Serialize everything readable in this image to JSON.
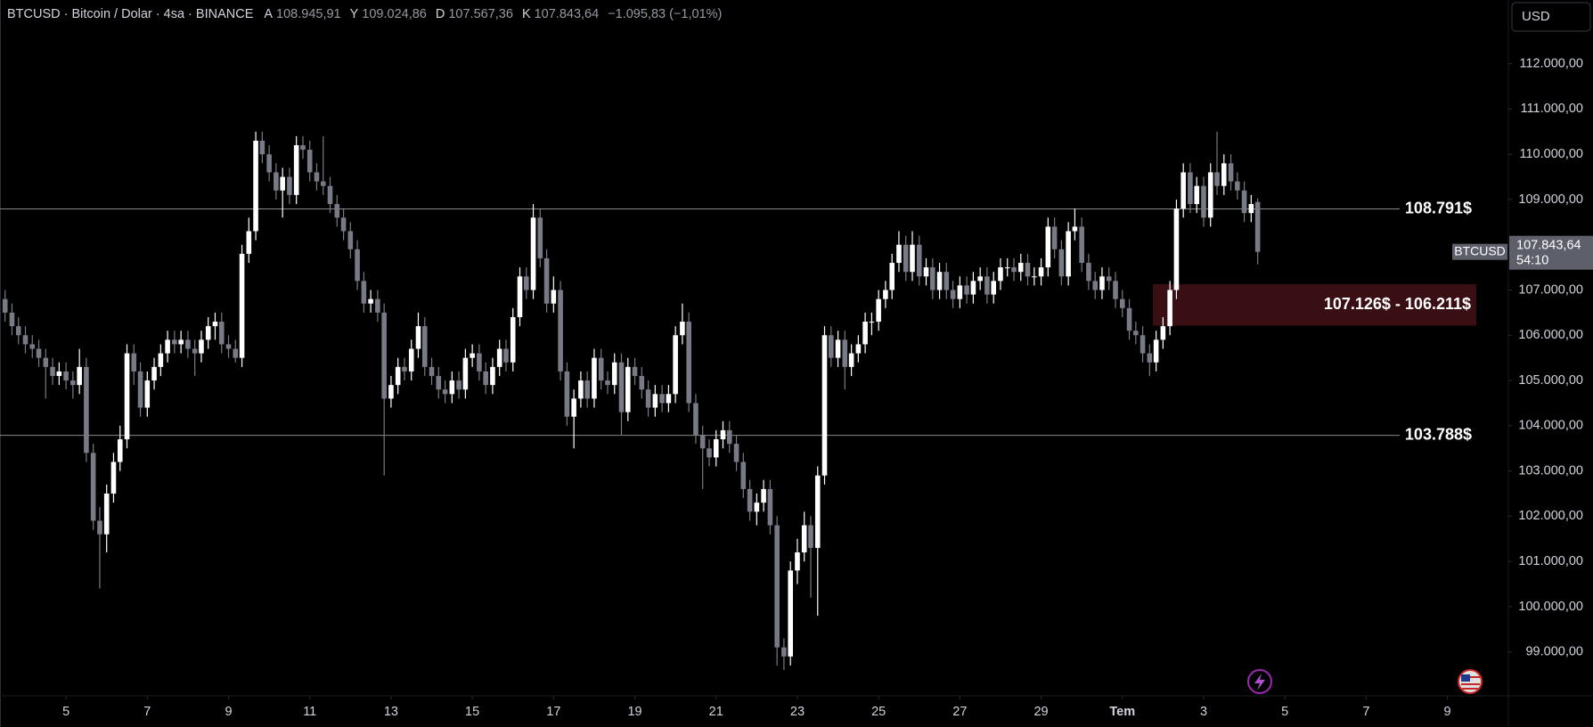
{
  "header": {
    "symbol": "BTCUSD · Bitcoin / Dolar · 4sa · BINANCE",
    "open_label": "A",
    "open": "108.945,91",
    "high_label": "Y",
    "high": "109.024,86",
    "low_label": "D",
    "low": "107.567,36",
    "close_label": "K",
    "close": "107.843,64",
    "change": "−1.095,83 (−1,01%)"
  },
  "currency_button": "USD",
  "price_label": {
    "symbol": "BTCUSD",
    "price": "107.843,64",
    "countdown": "54:10"
  },
  "chart_data": {
    "type": "candlestick",
    "up_color": "#ffffff",
    "down_color": "#787b86",
    "grid": false,
    "xlim": [
      3.375,
      40.5
    ],
    "ylim": [
      98030,
      113410
    ],
    "xticks": [
      5,
      7,
      9,
      11,
      13,
      15,
      17,
      19,
      21,
      23,
      25,
      27,
      29,
      {
        "value": 31,
        "label": "Tem"
      },
      {
        "value": 33,
        "label": "3"
      },
      {
        "value": 35,
        "label": "5"
      },
      {
        "value": 37,
        "label": "7"
      },
      {
        "value": 39,
        "label": "9"
      }
    ],
    "yticks": [
      {
        "value": 99000,
        "label": "99.000,00"
      },
      {
        "value": 100000,
        "label": "100.000,00"
      },
      {
        "value": 101000,
        "label": "101.000,00"
      },
      {
        "value": 102000,
        "label": "102.000,00"
      },
      {
        "value": 103000,
        "label": "103.000,00"
      },
      {
        "value": 104000,
        "label": "104.000,00"
      },
      {
        "value": 105000,
        "label": "105.000,00"
      },
      {
        "value": 106000,
        "label": "106.000,00"
      },
      {
        "value": 107000,
        "label": "107.000,00"
      },
      {
        "value": 108000,
        "label": "108.000,00"
      },
      {
        "value": 109000,
        "label": "109.000,00"
      },
      {
        "value": 110000,
        "label": "110.000,00"
      },
      {
        "value": 111000,
        "label": "111.000,00"
      },
      {
        "value": 112000,
        "label": "112.000,00"
      }
    ],
    "x": [
      3.5,
      3.67,
      3.83,
      4,
      4.17,
      4.33,
      4.5,
      4.67,
      4.83,
      5,
      5.17,
      5.33,
      5.5,
      5.67,
      5.83,
      6,
      6.17,
      6.33,
      6.5,
      6.67,
      6.83,
      7,
      7.17,
      7.33,
      7.5,
      7.67,
      7.83,
      8,
      8.17,
      8.33,
      8.5,
      8.67,
      8.83,
      9,
      9.17,
      9.33,
      9.5,
      9.67,
      9.83,
      10,
      10.17,
      10.33,
      10.5,
      10.67,
      10.83,
      11,
      11.17,
      11.33,
      11.5,
      11.67,
      11.83,
      12,
      12.17,
      12.33,
      12.5,
      12.67,
      12.83,
      13,
      13.17,
      13.33,
      13.5,
      13.67,
      13.83,
      14,
      14.17,
      14.33,
      14.5,
      14.67,
      14.83,
      15,
      15.17,
      15.33,
      15.5,
      15.67,
      15.83,
      16,
      16.17,
      16.33,
      16.5,
      16.67,
      16.83,
      17,
      17.17,
      17.33,
      17.5,
      17.67,
      17.83,
      18,
      18.17,
      18.33,
      18.5,
      18.67,
      18.83,
      19,
      19.17,
      19.33,
      19.5,
      19.67,
      19.83,
      20,
      20.17,
      20.33,
      20.5,
      20.67,
      20.83,
      21,
      21.17,
      21.33,
      21.5,
      21.67,
      21.83,
      22,
      22.17,
      22.33,
      22.5,
      22.67,
      22.83,
      23,
      23.17,
      23.33,
      23.5,
      23.67,
      23.83,
      24,
      24.17,
      24.33,
      24.5,
      24.67,
      24.83,
      25,
      25.17,
      25.33,
      25.5,
      25.67,
      25.83,
      26,
      26.17,
      26.33,
      26.5,
      26.67,
      26.83,
      27,
      27.17,
      27.33,
      27.5,
      27.67,
      27.83,
      28,
      28.17,
      28.33,
      28.5,
      28.67,
      28.83,
      29,
      29.17,
      29.33,
      29.5,
      29.67,
      29.83,
      30,
      30.17,
      30.33,
      30.5,
      30.67,
      30.83,
      31,
      31.17,
      31.33,
      31.5,
      31.67,
      31.83,
      32,
      32.17,
      32.33,
      32.5,
      32.67,
      32.83,
      33,
      33.17,
      33.33,
      33.5,
      33.67,
      33.83,
      34,
      34.17,
      34.33
    ],
    "open": [
      106800,
      106500,
      106200,
      106000,
      105800,
      105700,
      105500,
      105300,
      105100,
      105200,
      105000,
      104900,
      105300,
      103400,
      101900,
      101600,
      102500,
      103200,
      103700,
      105600,
      105200,
      104400,
      105000,
      105300,
      105600,
      105900,
      105800,
      105900,
      105700,
      105600,
      105900,
      106200,
      106300,
      105800,
      105700,
      105500,
      107800,
      108300,
      110300,
      110000,
      109600,
      109200,
      109500,
      109100,
      110200,
      110100,
      109600,
      109400,
      109300,
      108900,
      108600,
      108300,
      107900,
      107200,
      106700,
      106800,
      106500,
      104600,
      104900,
      105300,
      105200,
      105700,
      106200,
      105300,
      105100,
      104800,
      104700,
      105000,
      104800,
      105500,
      105600,
      105200,
      104900,
      105300,
      105700,
      105400,
      106400,
      107300,
      107000,
      108600,
      107700,
      106700,
      107000,
      105200,
      104200,
      104600,
      105000,
      104600,
      105500,
      105000,
      104900,
      105400,
      104300,
      105300,
      105100,
      104800,
      104400,
      104700,
      104500,
      104700,
      106000,
      106300,
      104500,
      103800,
      103500,
      103300,
      103700,
      103900,
      103600,
      103200,
      102600,
      102100,
      102300,
      102600,
      101800,
      99100,
      98900,
      100800,
      101200,
      101800,
      101300,
      102900,
      106000,
      105500,
      105900,
      105300,
      105600,
      105800,
      106300,
      106300,
      106800,
      107000,
      107600,
      108000,
      107400,
      108000,
      107300,
      107500,
      107000,
      107400,
      107000,
      106800,
      107100,
      106900,
      107200,
      107300,
      106900,
      107200,
      107500,
      107500,
      107400,
      107600,
      107300,
      107300,
      107500,
      108400,
      107900,
      107300,
      108300,
      108400,
      107600,
      107200,
      107000,
      107300,
      107200,
      106800,
      106600,
      106100,
      106000,
      105600,
      105400,
      105900,
      106200,
      107000,
      108800,
      109600,
      108900,
      109300,
      108600,
      109600,
      109300,
      109800,
      109400,
      109200,
      108700,
      108945.91
    ],
    "high": [
      107000,
      106700,
      106400,
      106200,
      106000,
      105900,
      105700,
      105500,
      105400,
      105400,
      105200,
      105700,
      105500,
      103600,
      102200,
      102700,
      103400,
      104000,
      105800,
      105800,
      105400,
      105200,
      105500,
      105800,
      106100,
      106100,
      106100,
      106100,
      105900,
      106100,
      106400,
      106500,
      106500,
      106000,
      105900,
      108000,
      108600,
      110500,
      110500,
      110200,
      109800,
      109700,
      109700,
      110400,
      110400,
      110300,
      109800,
      110400,
      109500,
      109100,
      108800,
      108500,
      108100,
      107400,
      107000,
      107000,
      106700,
      105100,
      105500,
      105500,
      105900,
      106500,
      106400,
      105500,
      105300,
      105000,
      105200,
      105200,
      105700,
      105800,
      105800,
      105400,
      105500,
      105900,
      105900,
      106600,
      107500,
      107500,
      108900,
      108800,
      107900,
      107300,
      107200,
      105400,
      104800,
      105200,
      105200,
      105700,
      105700,
      105200,
      105600,
      105600,
      105500,
      105500,
      105300,
      105000,
      104900,
      104900,
      104900,
      106200,
      106700,
      106500,
      104700,
      104000,
      103700,
      103900,
      104100,
      104100,
      103800,
      103400,
      102800,
      102500,
      102800,
      102800,
      102000,
      99300,
      101000,
      101500,
      102100,
      102000,
      103100,
      106200,
      106200,
      106100,
      106100,
      105800,
      106000,
      106500,
      106500,
      107000,
      107200,
      107800,
      108300,
      108200,
      108300,
      108200,
      107700,
      107700,
      107600,
      107600,
      107200,
      107300,
      107300,
      107400,
      107500,
      107500,
      107400,
      107700,
      107700,
      107700,
      107800,
      107800,
      107500,
      107700,
      108600,
      108600,
      108100,
      108500,
      108800,
      108600,
      107800,
      107400,
      107500,
      107500,
      107400,
      107000,
      106800,
      106300,
      106200,
      105800,
      106100,
      106400,
      107200,
      109000,
      109800,
      109800,
      109500,
      109500,
      109800,
      110500,
      110000,
      110000,
      109600,
      109400,
      109100,
      109024.86
    ],
    "low": [
      106300,
      106000,
      105800,
      105600,
      105500,
      105300,
      104600,
      104900,
      104900,
      104800,
      104600,
      104700,
      103200,
      101700,
      100400,
      101200,
      102300,
      103000,
      103500,
      104900,
      104200,
      104200,
      104800,
      105100,
      105400,
      105600,
      105600,
      105500,
      105100,
      105400,
      105700,
      105900,
      105600,
      105500,
      105400,
      105300,
      107600,
      108100,
      109800,
      109400,
      109000,
      108600,
      108900,
      108900,
      109900,
      109400,
      109200,
      109100,
      108700,
      108400,
      108100,
      107700,
      107000,
      106500,
      106500,
      106300,
      102900,
      104400,
      104700,
      105000,
      105000,
      105500,
      105100,
      104900,
      104600,
      104500,
      104500,
      104600,
      104600,
      105300,
      105000,
      104700,
      104700,
      105100,
      105200,
      105200,
      106200,
      106800,
      106800,
      107500,
      106500,
      106500,
      105000,
      104000,
      103500,
      104400,
      104400,
      104400,
      104800,
      104700,
      104700,
      103800,
      104100,
      104900,
      104600,
      104200,
      104200,
      104300,
      104300,
      104500,
      105800,
      104300,
      103600,
      102600,
      103100,
      103100,
      103500,
      103400,
      103000,
      102400,
      101900,
      101800,
      102100,
      101600,
      98700,
      98600,
      98700,
      100500,
      101000,
      100200,
      99800,
      102700,
      105300,
      105300,
      104800,
      105100,
      105400,
      105600,
      106000,
      106100,
      106600,
      106800,
      107400,
      107200,
      107200,
      107100,
      107100,
      106800,
      106800,
      106800,
      106600,
      106600,
      106700,
      106700,
      107000,
      106700,
      106700,
      107000,
      107300,
      107200,
      107200,
      107100,
      107100,
      107100,
      107300,
      107700,
      107100,
      107100,
      108100,
      107400,
      107000,
      106800,
      106800,
      107000,
      106600,
      106400,
      105900,
      105800,
      105400,
      105100,
      105200,
      105700,
      106000,
      106800,
      108600,
      108700,
      108700,
      108400,
      108400,
      109100,
      109100,
      109200,
      109000,
      108500,
      108500,
      107567.36
    ],
    "close": [
      106500,
      106200,
      106000,
      105800,
      105700,
      105500,
      105300,
      105100,
      105200,
      105000,
      104900,
      105300,
      103400,
      101900,
      101600,
      102500,
      103200,
      103700,
      105600,
      105200,
      104400,
      105000,
      105300,
      105600,
      105900,
      105800,
      105900,
      105700,
      105600,
      105900,
      106200,
      106300,
      105800,
      105700,
      105500,
      107800,
      108300,
      110300,
      110000,
      109600,
      109200,
      109500,
      109100,
      110200,
      110100,
      109600,
      109400,
      109300,
      108900,
      108600,
      108300,
      107900,
      107200,
      106700,
      106800,
      106500,
      104600,
      104900,
      105300,
      105200,
      105700,
      106200,
      105300,
      105100,
      104800,
      104700,
      105000,
      104800,
      105500,
      105600,
      105200,
      104900,
      105300,
      105700,
      105400,
      106400,
      107300,
      107000,
      108600,
      107700,
      106700,
      107000,
      105200,
      104200,
      104600,
      105000,
      104600,
      105500,
      105000,
      104900,
      105400,
      104300,
      105300,
      105100,
      104800,
      104400,
      104700,
      104500,
      104700,
      106000,
      106300,
      104500,
      103800,
      103500,
      103300,
      103700,
      103900,
      103600,
      103200,
      102600,
      102100,
      102300,
      102600,
      101800,
      99100,
      98900,
      100800,
      101200,
      101800,
      101300,
      102900,
      106000,
      105500,
      105900,
      105300,
      105600,
      105800,
      106300,
      106300,
      106800,
      107000,
      107600,
      108000,
      107400,
      108000,
      107300,
      107500,
      107000,
      107400,
      107000,
      106800,
      107100,
      106900,
      107200,
      107300,
      106900,
      107200,
      107500,
      107500,
      107400,
      107600,
      107300,
      107300,
      107500,
      108400,
      107900,
      107300,
      108300,
      108400,
      107600,
      107200,
      107000,
      107300,
      107200,
      106800,
      106600,
      106100,
      106000,
      105600,
      105400,
      105900,
      106200,
      107000,
      108800,
      109600,
      108900,
      109300,
      108600,
      109600,
      109300,
      109800,
      109400,
      109200,
      108700,
      108900,
      107843.64
    ],
    "levels": [
      {
        "value": 108791,
        "label": "108.791$",
        "color": "#8a8a8a"
      },
      {
        "value": 103788,
        "label": "103.788$",
        "color": "#8a8a8a"
      }
    ],
    "zone": {
      "from": 106211,
      "to": 107126,
      "label": "107.126$ - 106.211$",
      "color": "#3a0f14"
    }
  }
}
